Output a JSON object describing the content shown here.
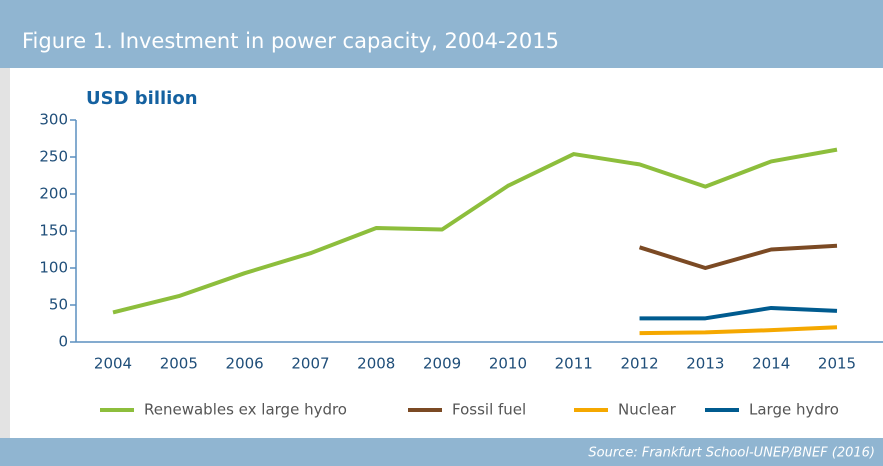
{
  "chart_data": {
    "type": "line",
    "title": "Figure 1. Investment in power capacity, 2004-2015",
    "y_label": "USD billion",
    "source": "Source: Frankfurt School-UNEP/BNEF (2016)",
    "x": [
      2004,
      2005,
      2006,
      2007,
      2008,
      2009,
      2010,
      2011,
      2012,
      2013,
      2014,
      2015
    ],
    "xlim": [
      2004,
      2015
    ],
    "ylim": [
      0,
      300
    ],
    "yticks": [
      0,
      50,
      100,
      150,
      200,
      250,
      300
    ],
    "legend": "bottom",
    "series": [
      {
        "name": "Renewables ex large hydro",
        "color": "#8dbe3c",
        "values": [
          40,
          62,
          93,
          120,
          154,
          152,
          211,
          254,
          240,
          210,
          244,
          260
        ]
      },
      {
        "name": "Fossil fuel",
        "color": "#7b4a24",
        "values": [
          null,
          null,
          null,
          null,
          null,
          null,
          null,
          null,
          128,
          100,
          125,
          130
        ]
      },
      {
        "name": "Nuclear",
        "color": "#f5a800",
        "values": [
          null,
          null,
          null,
          null,
          null,
          null,
          null,
          null,
          12,
          13,
          16,
          20
        ]
      },
      {
        "name": "Large hydro",
        "color": "#005b8f",
        "values": [
          null,
          null,
          null,
          null,
          null,
          null,
          null,
          null,
          32,
          32,
          46,
          42
        ]
      }
    ]
  }
}
